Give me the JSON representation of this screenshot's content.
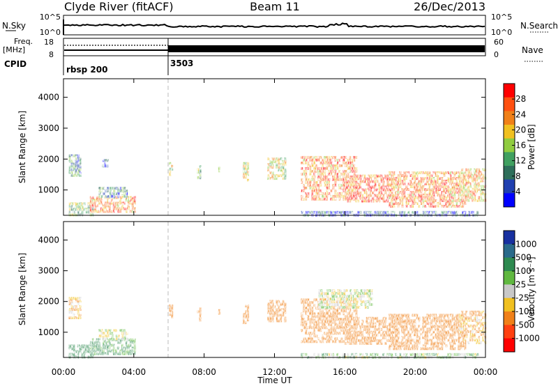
{
  "header": {
    "station": "Clyde River (fitACF)",
    "beam": "Beam 11",
    "date": "26/Dec/2013"
  },
  "noise_panel": {
    "left_label": "N.Sky",
    "right_label": "N.Search",
    "left_ticks": [
      "10^5",
      "10^0"
    ],
    "right_ticks": [
      "10^5",
      "10^0"
    ]
  },
  "freq_panel": {
    "label_line1": "Freq.",
    "label_line2": "[MHz]",
    "left_ticks": [
      "18",
      "8"
    ],
    "right_label": "Nave",
    "right_ticks": [
      "60",
      "0"
    ]
  },
  "cpid_panel": {
    "label": "CPID",
    "segments": [
      {
        "label": "rbsp 200",
        "start_hour": 0
      },
      {
        "label": "3503",
        "start_hour": 6
      }
    ]
  },
  "chart_data": [
    {
      "type": "heatmap",
      "panel": "power",
      "xlabel": "Time UT",
      "ylabel": "Slant Range [km]",
      "xlim": [
        0,
        24
      ],
      "ylim": [
        180,
        4600
      ],
      "x_ticks": [
        "00:00",
        "04:00",
        "08:00",
        "12:00",
        "16:00",
        "20:00",
        "00:00"
      ],
      "x_tick_hours": [
        0,
        4,
        8,
        12,
        16,
        20,
        24
      ],
      "y_ticks": [
        1000,
        2000,
        3000,
        4000
      ],
      "colorbar_label": "Power [dB]",
      "colorbar_ticks": [
        4,
        8,
        12,
        16,
        20,
        24,
        28
      ],
      "colorbar_range": [
        0,
        32
      ],
      "colors": [
        "#0000ff",
        "#2040b0",
        "#2e6e5a",
        "#40a060",
        "#90cc40",
        "#f0c020",
        "#f08018",
        "#ff5010",
        "#ff0000"
      ],
      "echo_regions": [
        {
          "t": [
            0.3,
            1.0
          ],
          "range": [
            1450,
            2150
          ],
          "value": 10
        },
        {
          "t": [
            0.3,
            1.7
          ],
          "range": [
            200,
            600
          ],
          "value": 14
        },
        {
          "t": [
            1.5,
            4.0
          ],
          "range": [
            300,
            800
          ],
          "value": 24
        },
        {
          "t": [
            2.0,
            3.6
          ],
          "range": [
            800,
            1100
          ],
          "value": 10
        },
        {
          "t": [
            2.2,
            2.5
          ],
          "range": [
            1800,
            2000
          ],
          "value": 6
        },
        {
          "t": [
            6.0,
            6.2
          ],
          "range": [
            1450,
            1900
          ],
          "value": 16
        },
        {
          "t": [
            7.6,
            7.8
          ],
          "range": [
            1350,
            1800
          ],
          "value": 14
        },
        {
          "t": [
            8.8,
            8.9
          ],
          "range": [
            1500,
            1750
          ],
          "value": 12
        },
        {
          "t": [
            10.2,
            10.5
          ],
          "range": [
            1300,
            1900
          ],
          "value": 16
        },
        {
          "t": [
            11.6,
            12.6
          ],
          "range": [
            1400,
            2050
          ],
          "value": 18
        },
        {
          "t": [
            13.5,
            16.6
          ],
          "range": [
            700,
            2100
          ],
          "value": 24
        },
        {
          "t": [
            16.0,
            19.0
          ],
          "range": [
            600,
            1500
          ],
          "value": 26
        },
        {
          "t": [
            18.5,
            22.8
          ],
          "range": [
            450,
            1600
          ],
          "value": 24
        },
        {
          "t": [
            22.5,
            24.0
          ],
          "range": [
            700,
            1700
          ],
          "value": 22
        },
        {
          "t": [
            13.5,
            23.5
          ],
          "range": [
            190,
            320
          ],
          "value": 6
        }
      ]
    },
    {
      "type": "heatmap",
      "panel": "velocity",
      "xlabel": "Time UT",
      "ylabel": "Slant Range [km]",
      "xlim": [
        0,
        24
      ],
      "ylim": [
        180,
        4600
      ],
      "x_ticks": [
        "00:00",
        "04:00",
        "08:00",
        "12:00",
        "16:00",
        "20:00",
        "00:00"
      ],
      "x_tick_hours": [
        0,
        4,
        8,
        12,
        16,
        20,
        24
      ],
      "y_ticks": [
        1000,
        2000,
        3000,
        4000
      ],
      "colorbar_label": "Velocity [m s⁻¹]",
      "colorbar_ticks": [
        "1000",
        "500",
        "100",
        "25",
        "-25",
        "-100",
        "-500",
        "-1000"
      ],
      "colors": [
        "#1830a0",
        "#2a6a8a",
        "#2e8a50",
        "#60b840",
        "#c8c8c8",
        "#f0c020",
        "#f08018",
        "#ff4010",
        "#ff0000"
      ],
      "echo_regions": [
        {
          "t": [
            0.3,
            1.0
          ],
          "range": [
            1450,
            2150
          ],
          "value": -100
        },
        {
          "t": [
            0.3,
            1.7
          ],
          "range": [
            200,
            600
          ],
          "value": 200
        },
        {
          "t": [
            1.5,
            4.0
          ],
          "range": [
            300,
            800
          ],
          "value": 150
        },
        {
          "t": [
            2.0,
            3.6
          ],
          "range": [
            800,
            1100
          ],
          "value": 0
        },
        {
          "t": [
            6.0,
            6.2
          ],
          "range": [
            1450,
            1900
          ],
          "value": -300
        },
        {
          "t": [
            7.6,
            7.8
          ],
          "range": [
            1350,
            1800
          ],
          "value": -300
        },
        {
          "t": [
            8.8,
            8.9
          ],
          "range": [
            1500,
            1750
          ],
          "value": -300
        },
        {
          "t": [
            10.2,
            10.5
          ],
          "range": [
            1300,
            1900
          ],
          "value": -300
        },
        {
          "t": [
            11.6,
            12.6
          ],
          "range": [
            1400,
            2050
          ],
          "value": -300
        },
        {
          "t": [
            13.5,
            16.6
          ],
          "range": [
            700,
            2100
          ],
          "value": -300
        },
        {
          "t": [
            14.5,
            17.5
          ],
          "range": [
            1800,
            2400
          ],
          "value": 0
        },
        {
          "t": [
            16.0,
            19.0
          ],
          "range": [
            600,
            1500
          ],
          "value": -300
        },
        {
          "t": [
            18.5,
            22.8
          ],
          "range": [
            450,
            1600
          ],
          "value": -300
        },
        {
          "t": [
            22.5,
            24.0
          ],
          "range": [
            700,
            1700
          ],
          "value": -100
        },
        {
          "t": [
            13.5,
            23.5
          ],
          "range": [
            190,
            320
          ],
          "value": 50
        }
      ]
    }
  ]
}
